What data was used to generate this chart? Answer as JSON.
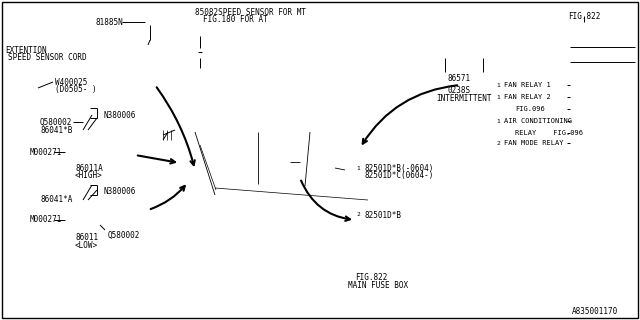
{
  "bg_color": "#ffffff",
  "line_color": "#000000",
  "fig_number": "A835001170",
  "labels": {
    "81885N": "81885N",
    "speed_sensor_title": "85082SPEED SENSOR FOR MT",
    "fig180": "FIG.180 FOR AT",
    "extention1": "EXTENTION",
    "extention2": "SPEED SENSOR CORD",
    "W400025": "W400025",
    "D0505": "(D0505- )",
    "Q580002": "Q580002",
    "N380006": "N380006",
    "86041B": "86041*B",
    "M000271": "M000271",
    "86011A": "86011A",
    "HIGH": "<HIGH>",
    "N380006b": "N380006",
    "86041A": "86041*A",
    "Q580002b": "Q580002",
    "M000271b": "M000271",
    "86011": "86011",
    "LOW": "<LOW>",
    "86571": "86571",
    "0238S": "0238S",
    "INTERMITTENT": "INTERMITTENT",
    "82501DB0604": "82501D*B(-0604)",
    "82501DC0604": "82501D*C(0604-)",
    "82501DB": "82501D*B",
    "FIG822_main": "FIG.822",
    "MAIN_FUSE_BOX": "MAIN FUSE BOX",
    "FIG822_top": "FIG.822",
    "FAN_RELAY_1": "FAN RELAY 1",
    "FAN_RELAY_2": "FAN RELAY 2",
    "FIG096_1": "FIG.096",
    "AIR_COND": "AIR CONDITIONING",
    "RELAY": "RELAY",
    "FIG096_2": "FIG.096",
    "FAN_MODE": "FAN MODE RELAY"
  }
}
